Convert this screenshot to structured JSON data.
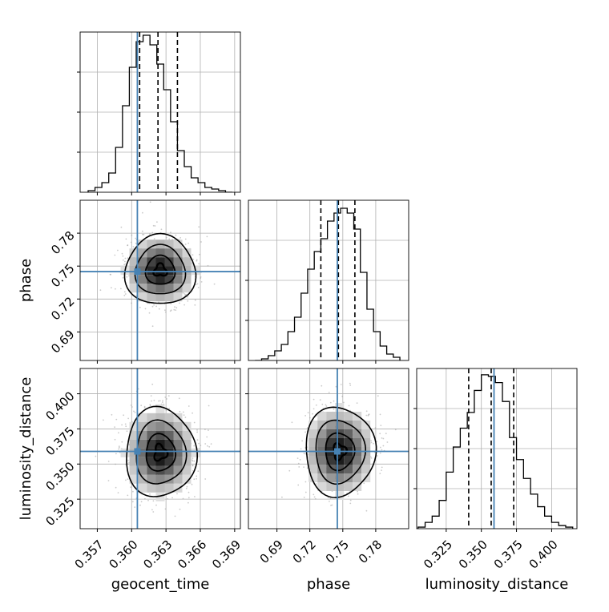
{
  "chart_data": {
    "type": "corner",
    "parameters": [
      "geocent_time",
      "phase",
      "luminosity_distance"
    ],
    "axis_labels": {
      "x": [
        "geocent_time",
        "phase",
        "luminosity_distance"
      ],
      "y": [
        "",
        "phase",
        "luminosity_distance"
      ]
    },
    "ranges": {
      "geocent_time": [
        0.3555,
        0.3695
      ],
      "phase": [
        0.664,
        0.81
      ],
      "luminosity_distance": [
        0.304,
        0.418
      ]
    },
    "ticks": {
      "geocent_time": [
        {
          "value": 0.357,
          "label": "0.357"
        },
        {
          "value": 0.36,
          "label": "0.360"
        },
        {
          "value": 0.363,
          "label": "0.363"
        },
        {
          "value": 0.366,
          "label": "0.366"
        },
        {
          "value": 0.369,
          "label": "0.369"
        }
      ],
      "phase": [
        {
          "value": 0.69,
          "label": "0.69"
        },
        {
          "value": 0.72,
          "label": "0.72"
        },
        {
          "value": 0.75,
          "label": "0.75"
        },
        {
          "value": 0.78,
          "label": "0.78"
        }
      ],
      "luminosity_distance": [
        {
          "value": 0.325,
          "label": "0.325"
        },
        {
          "value": 0.35,
          "label": "0.350"
        },
        {
          "value": 0.375,
          "label": "0.375"
        },
        {
          "value": 0.4,
          "label": "0.400"
        }
      ]
    },
    "truths": {
      "geocent_time": 0.3605,
      "phase": 0.745,
      "luminosity_distance": 0.359
    },
    "quantiles": {
      "geocent_time": [
        0.3607,
        0.3623,
        0.364
      ],
      "phase": [
        0.73,
        0.746,
        0.761
      ],
      "luminosity_distance": [
        0.341,
        0.357,
        0.373
      ]
    },
    "histograms": {
      "geocent_time": {
        "edges": [
          0.3562,
          0.3568,
          0.3574,
          0.358,
          0.3586,
          0.3592,
          0.3598,
          0.3604,
          0.361,
          0.3616,
          0.3622,
          0.3628,
          0.3634,
          0.364,
          0.3646,
          0.3652,
          0.3658,
          0.3664,
          0.367,
          0.3676,
          0.3682,
          0.3688
        ],
        "counts": [
          1,
          3,
          6,
          12,
          28,
          54,
          78,
          94,
          98,
          92,
          80,
          64,
          44,
          26,
          16,
          9,
          6,
          3,
          2,
          1,
          0
        ],
        "ymax": 100
      },
      "phase": {
        "edges": [
          0.67,
          0.676,
          0.682,
          0.688,
          0.694,
          0.7,
          0.706,
          0.712,
          0.718,
          0.724,
          0.73,
          0.736,
          0.742,
          0.748,
          0.754,
          0.76,
          0.766,
          0.772,
          0.778,
          0.784,
          0.79,
          0.796,
          0.802
        ],
        "counts": [
          0,
          1,
          3,
          6,
          10,
          18,
          27,
          42,
          57,
          68,
          76,
          87,
          92,
          95,
          92,
          82,
          55,
          32,
          18,
          9,
          4,
          2
        ],
        "ymax": 100
      },
      "luminosity_distance": {
        "edges": [
          0.305,
          0.31,
          0.315,
          0.32,
          0.325,
          0.33,
          0.335,
          0.34,
          0.345,
          0.35,
          0.355,
          0.36,
          0.365,
          0.37,
          0.375,
          0.38,
          0.385,
          0.39,
          0.395,
          0.4,
          0.405,
          0.41,
          0.415
        ],
        "counts": [
          1,
          4,
          8,
          18,
          36,
          52,
          64,
          74,
          88,
          98,
          97,
          93,
          81,
          58,
          44,
          32,
          22,
          14,
          8,
          4,
          2,
          1
        ],
        "ymax": 102
      }
    },
    "density_panels": [
      {
        "x": "geocent_time",
        "y": "phase",
        "x_mean": 0.3625,
        "y_mean": 0.746,
        "x_sd": 0.0015,
        "y_sd": 0.0155
      },
      {
        "x": "geocent_time",
        "y": "luminosity_distance",
        "x_mean": 0.3625,
        "y_mean": 0.358,
        "x_sd": 0.0015,
        "y_sd": 0.0155
      },
      {
        "x": "phase",
        "y": "luminosity_distance",
        "x_mean": 0.747,
        "y_mean": 0.359,
        "x_sd": 0.0155,
        "y_sd": 0.0155
      }
    ],
    "grid": true,
    "colors": {
      "truth": "#4682b4",
      "line": "#000000",
      "grid": "#b0b0b0",
      "scatter": "#a0a0a0"
    }
  }
}
